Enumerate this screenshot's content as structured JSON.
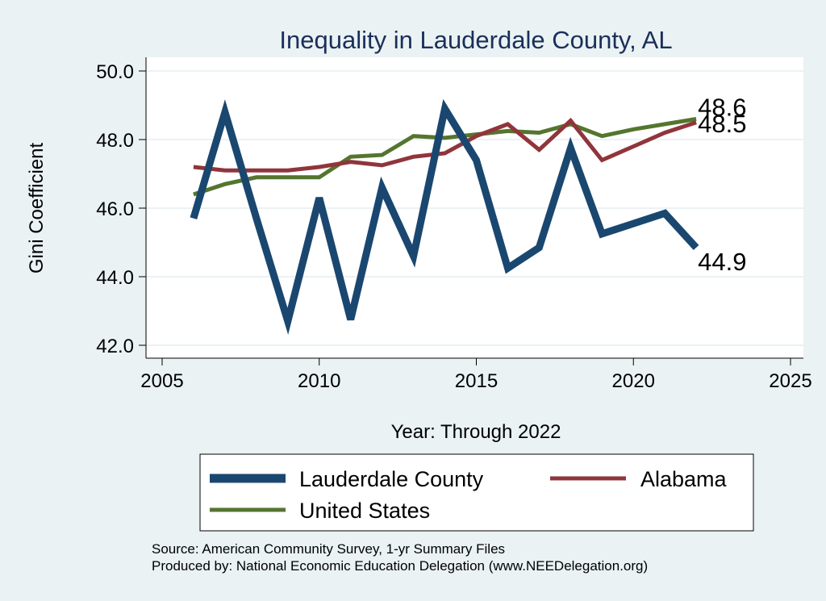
{
  "chart_data": {
    "type": "line",
    "title": "Inequality in Lauderdale County, AL",
    "xlabel": "Year: Through 2022",
    "ylabel": "Gini Coefficient",
    "xlim": [
      2005,
      2025
    ],
    "ylim": [
      42.0,
      50.0
    ],
    "xticks": [
      "2005",
      "2010",
      "2015",
      "2020",
      "2025"
    ],
    "yticks": [
      "42.0",
      "44.0",
      "46.0",
      "48.0",
      "50.0"
    ],
    "x": [
      2006,
      2007,
      2008,
      2009,
      2010,
      2011,
      2012,
      2013,
      2014,
      2015,
      2016,
      2017,
      2018,
      2019,
      2020,
      2021,
      2022
    ],
    "series": [
      {
        "name": "Lauderdale County",
        "color": "#1a476f",
        "values": [
          45.7,
          48.8,
          45.7,
          42.7,
          46.3,
          42.75,
          46.6,
          44.6,
          48.9,
          47.4,
          44.25,
          44.85,
          47.75,
          45.25,
          45.55,
          45.85,
          44.85
        ],
        "end_label": "44.9"
      },
      {
        "name": "Alabama",
        "color": "#90353b",
        "values": [
          47.2,
          47.1,
          47.1,
          47.1,
          47.2,
          47.35,
          47.25,
          47.5,
          47.6,
          48.1,
          48.45,
          47.7,
          48.55,
          47.4,
          47.8,
          48.2,
          48.5
        ],
        "end_label": "48.5"
      },
      {
        "name": "United States",
        "color": "#55752f",
        "values": [
          46.4,
          46.7,
          46.9,
          46.9,
          46.9,
          47.5,
          47.55,
          48.1,
          48.05,
          48.15,
          48.25,
          48.2,
          48.45,
          48.1,
          48.3,
          48.45,
          48.6
        ],
        "end_label": "48.6"
      }
    ],
    "legend": [
      "Lauderdale County",
      "Alabama",
      "United States"
    ]
  },
  "source": {
    "line1": "Source: American Community Survey, 1-yr Summary Files",
    "line2": "Produced by: National Economic Education Delegation (www.NEEDelegation.org)"
  }
}
